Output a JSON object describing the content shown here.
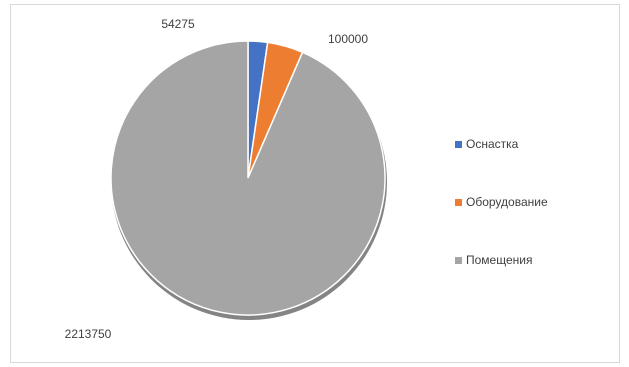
{
  "chart_data": {
    "type": "pie",
    "title": "",
    "categories": [
      "Оснастка",
      "Оборудование",
      "Помещения"
    ],
    "values": [
      54275,
      100000,
      2213750
    ],
    "data_labels": [
      "54275",
      "100000",
      "2213750"
    ],
    "colors": [
      "#4472c4",
      "#ed7d31",
      "#a5a5a5"
    ],
    "legend_position": "right",
    "start_angle": "top",
    "direction": "clockwise",
    "shadow": true
  }
}
